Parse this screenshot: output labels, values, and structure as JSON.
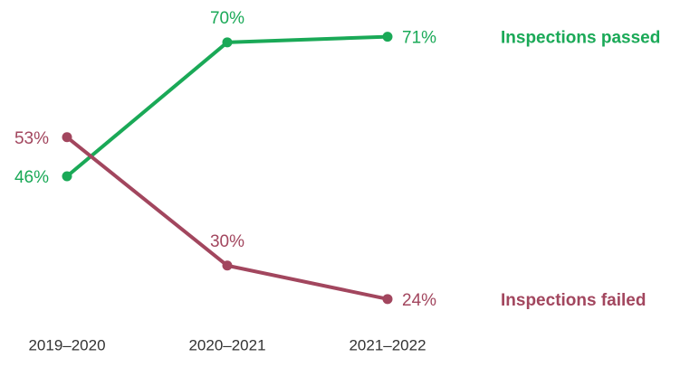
{
  "chart_data": {
    "type": "line",
    "categories": [
      "2019–2020",
      "2020–2021",
      "2021–2022"
    ],
    "series": [
      {
        "name": "Inspections passed",
        "color": "#1aa957",
        "values": [
          46,
          70,
          71
        ],
        "value_labels": [
          "46%",
          "70%",
          "71%"
        ]
      },
      {
        "name": "Inspections failed",
        "color": "#a2465e",
        "values": [
          53,
          30,
          24
        ],
        "value_labels": [
          "53%",
          "30%",
          "24%"
        ]
      }
    ]
  }
}
